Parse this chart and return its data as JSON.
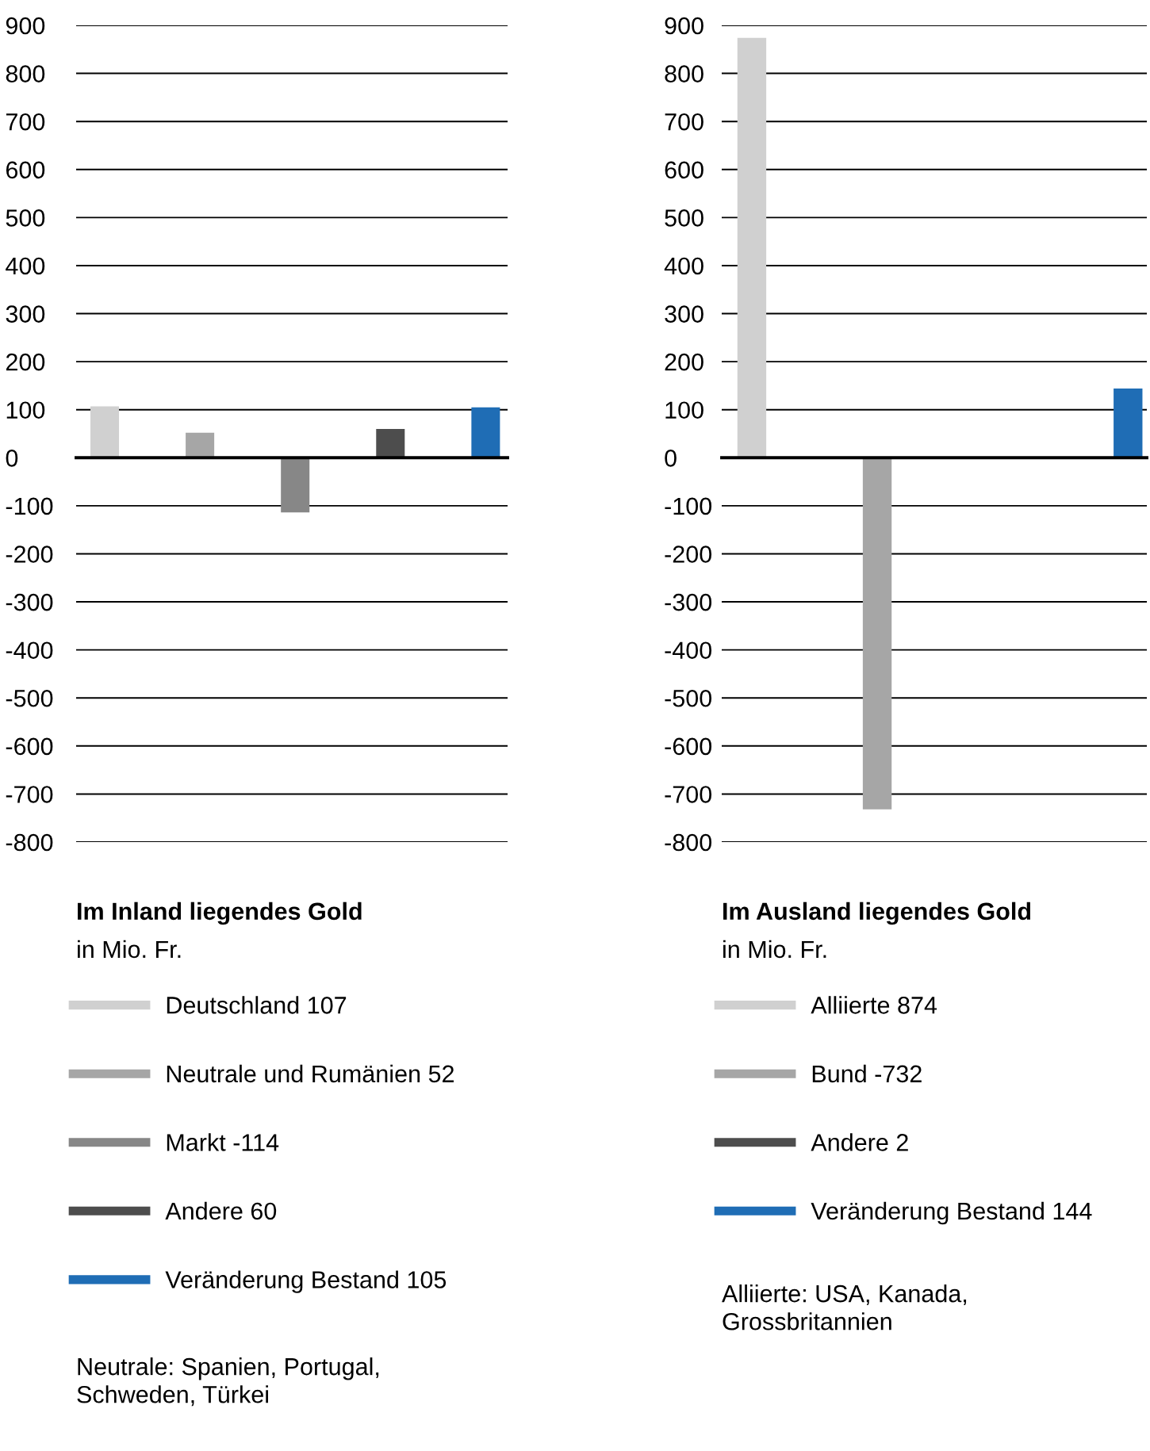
{
  "chart_data": [
    {
      "type": "bar",
      "title": "Im Inland liegendes Gold",
      "subtitle": "in Mio. Fr.",
      "categories": [
        null,
        null,
        null,
        null,
        null
      ],
      "ylim": [
        -800,
        900
      ],
      "yticks": [
        -800,
        -700,
        -600,
        -500,
        -400,
        -300,
        -200,
        -100,
        0,
        100,
        200,
        300,
        400,
        500,
        600,
        700,
        800,
        900
      ],
      "grid": "y",
      "legend": "bottom",
      "series": [
        {
          "name": "Deutschland 107",
          "color": "#d0d0d0",
          "values": [
            107,
            null,
            null,
            null,
            null
          ]
        },
        {
          "name": "Neutrale und Rumänien 52",
          "color": "#a6a6a6",
          "values": [
            null,
            52,
            null,
            null,
            null
          ]
        },
        {
          "name": "Markt -114",
          "color": "#878787",
          "values": [
            null,
            null,
            -114,
            null,
            null
          ]
        },
        {
          "name": "Andere 60",
          "color": "#4d4d4d",
          "values": [
            null,
            null,
            null,
            60,
            null
          ]
        },
        {
          "name": "Veränderung Bestand 105",
          "color": "#1f6db5",
          "values": [
            null,
            null,
            null,
            null,
            105
          ]
        }
      ],
      "annotations": [
        "Neutrale: Spanien, Portugal,\nSchweden, Türkei"
      ]
    },
    {
      "type": "bar",
      "title": "Im Ausland liegendes Gold",
      "subtitle": "in Mio. Fr.",
      "categories": [
        null,
        null,
        null,
        null
      ],
      "ylim": [
        -800,
        900
      ],
      "yticks": [
        -800,
        -700,
        -600,
        -500,
        -400,
        -300,
        -200,
        -100,
        0,
        100,
        200,
        300,
        400,
        500,
        600,
        700,
        800,
        900
      ],
      "grid": "y",
      "legend": "bottom",
      "series": [
        {
          "name": "Alliierte 874",
          "color": "#d0d0d0",
          "values": [
            874,
            null,
            null,
            null
          ]
        },
        {
          "name": "Bund -732",
          "color": "#a6a6a6",
          "values": [
            null,
            -732,
            null,
            null
          ]
        },
        {
          "name": "Andere 2",
          "color": "#4d4d4d",
          "values": [
            null,
            null,
            2,
            null
          ]
        },
        {
          "name": "Veränderung Bestand 144",
          "color": "#1f6db5",
          "values": [
            null,
            null,
            null,
            144
          ]
        }
      ],
      "annotations": [
        "Alliierte: USA, Kanada,\nGrossbritannien"
      ]
    }
  ]
}
